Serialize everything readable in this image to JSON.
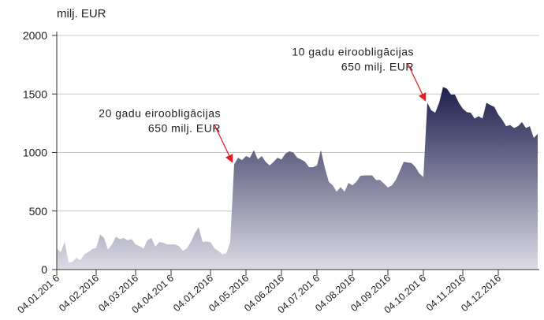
{
  "chart_data": {
    "type": "area",
    "y_label": "milj. EUR",
    "color": "#1e1f4d",
    "ylim": [
      0,
      2000
    ],
    "yticks": [
      0,
      500,
      1000,
      1500,
      2000
    ],
    "grid": true,
    "annotations": [
      {
        "lines": [
          "20 gadu eiroobligācijas",
          "650 milj. EUR"
        ],
        "index": 44
      },
      {
        "lines": [
          "10 gadu eiroobligācijas",
          "650 milj. EUR"
        ],
        "index": 93
      }
    ],
    "categories": [
      "04.01.201 6",
      null,
      null,
      null,
      null,
      null,
      null,
      null,
      null,
      null,
      "04.02.2016",
      null,
      null,
      null,
      null,
      null,
      null,
      null,
      null,
      null,
      "04.03.2016",
      null,
      null,
      null,
      null,
      null,
      null,
      null,
      null,
      "04.04.201 6",
      null,
      null,
      null,
      null,
      null,
      null,
      null,
      null,
      null,
      "04.01.2016",
      null,
      null,
      null,
      null,
      null,
      null,
      null,
      null,
      "04.05.2016",
      null,
      null,
      null,
      null,
      null,
      null,
      null,
      null,
      "04.06.2016",
      null,
      null,
      null,
      null,
      null,
      null,
      null,
      null,
      "04.07.201 6",
      null,
      null,
      null,
      null,
      null,
      null,
      null,
      null,
      "04.08.2016",
      null,
      null,
      null,
      null,
      null,
      null,
      null,
      null,
      "04.09.2016",
      null,
      null,
      null,
      null,
      null,
      null,
      null,
      null,
      "04.10.201 6",
      null,
      null,
      null,
      null,
      null,
      null,
      null,
      null,
      null,
      "04.11.2016",
      null,
      null,
      null,
      null,
      null,
      null,
      null,
      null,
      "04.12.2016",
      null,
      null,
      null,
      null,
      null,
      null,
      null,
      null,
      null,
      null
    ],
    "values": [
      180,
      150,
      235,
      60,
      65,
      100,
      80,
      130,
      150,
      175,
      185,
      300,
      270,
      170,
      215,
      280,
      260,
      270,
      250,
      260,
      215,
      200,
      180,
      250,
      270,
      195,
      235,
      230,
      215,
      215,
      215,
      200,
      160,
      180,
      235,
      310,
      360,
      235,
      240,
      235,
      180,
      160,
      130,
      140,
      235,
      900,
      955,
      935,
      970,
      955,
      1020,
      940,
      970,
      920,
      890,
      920,
      955,
      940,
      990,
      1010,
      1000,
      955,
      940,
      920,
      875,
      875,
      890,
      1020,
      870,
      750,
      720,
      665,
      705,
      665,
      740,
      720,
      750,
      800,
      805,
      805,
      805,
      765,
      765,
      735,
      700,
      720,
      765,
      840,
      920,
      915,
      910,
      875,
      820,
      790,
      1425,
      1360,
      1340,
      1425,
      1560,
      1545,
      1495,
      1495,
      1425,
      1375,
      1345,
      1340,
      1290,
      1310,
      1290,
      1425,
      1405,
      1390,
      1325,
      1280,
      1225,
      1235,
      1210,
      1225,
      1260,
      1210,
      1225,
      1125,
      1160
    ]
  }
}
